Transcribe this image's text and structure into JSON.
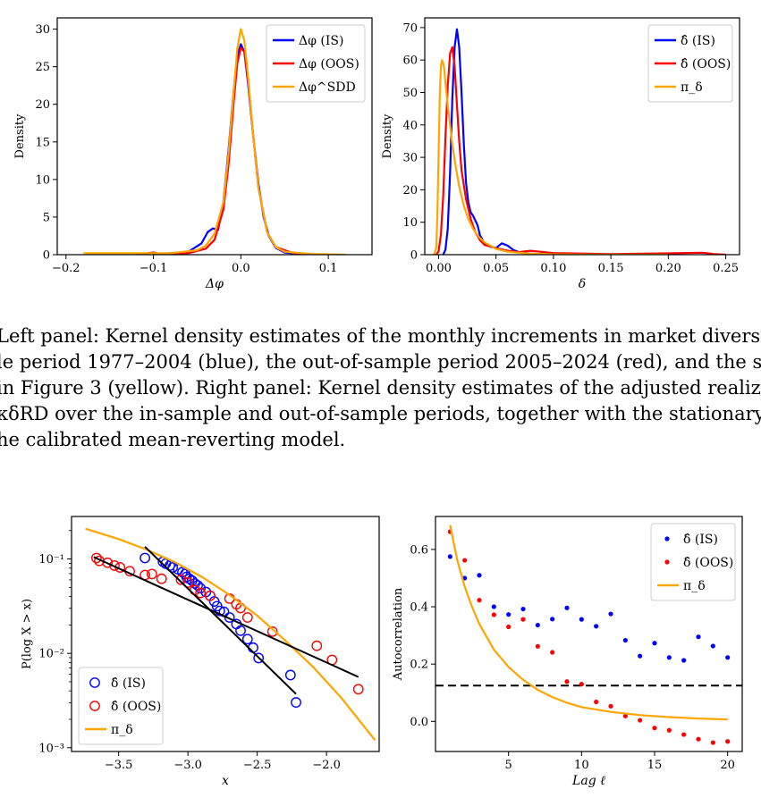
{
  "caption_lines": [
    "Left panel: Kernel density estimates of the monthly increments in market diversit",
    "le period 1977–2004 (blue), the out-of-sample period 2005–2024 (red), and the s",
    "in Figure 3 (yellow). Right panel: Kernel density estimates of the adjusted realize",
    "κδRD over the in-sample and out-of-sample periods, together with the stationary",
    "he calibrated mean-reverting model."
  ],
  "colors": {
    "is": "#0000ff",
    "oos": "#ff0000",
    "model": "#ffa500",
    "fit": "#000000"
  },
  "chart_data": [
    {
      "id": "kde-dphi",
      "type": "line",
      "xlabel": "Δφ",
      "ylabel": "Density",
      "xlim": [
        -0.21,
        0.15
      ],
      "ylim": [
        0,
        31.5
      ],
      "xticks": [
        -0.2,
        -0.1,
        0.0,
        0.1
      ],
      "xtick_labels": [
        "−0.2",
        "−0.1",
        "0.0",
        "0.1"
      ],
      "yticks": [
        0,
        5,
        10,
        15,
        20,
        25,
        30
      ],
      "ytick_labels": [
        "0",
        "5",
        "10",
        "15",
        "20",
        "25",
        "30"
      ],
      "legend_position": "top-right",
      "series": [
        {
          "name": "Δφ (IS)",
          "color": "#0000ff",
          "x": [
            -0.1,
            -0.06,
            -0.045,
            -0.038,
            -0.032,
            -0.026,
            -0.02,
            -0.014,
            -0.008,
            -0.004,
            0.0,
            0.004,
            0.008,
            0.014,
            0.02,
            0.026,
            0.032,
            0.04,
            0.05,
            0.07,
            0.1
          ],
          "y": [
            0,
            0.4,
            1.5,
            3.0,
            3.5,
            3.3,
            7.0,
            14.0,
            22.0,
            26.5,
            28.0,
            27.0,
            23.0,
            16.0,
            9.5,
            5.0,
            2.5,
            0.9,
            0.3,
            0.05,
            0
          ]
        },
        {
          "name": "Δφ (OOS)",
          "color": "#ff0000",
          "x": [
            -0.12,
            -0.1,
            -0.09,
            -0.06,
            -0.04,
            -0.03,
            -0.02,
            -0.014,
            -0.008,
            -0.004,
            0.0,
            0.004,
            0.008,
            0.014,
            0.02,
            0.03,
            0.04,
            0.06,
            0.08
          ],
          "y": [
            0,
            0.3,
            0,
            0.2,
            0.8,
            2.0,
            6.0,
            12.0,
            20.5,
            25.5,
            27.5,
            27.0,
            23.5,
            16.0,
            9.0,
            3.0,
            1.0,
            0.2,
            0
          ]
        },
        {
          "name": "Δφ^SDD",
          "color": "#ffa500",
          "x": [
            -0.18,
            -0.12,
            -0.08,
            -0.05,
            -0.04,
            -0.03,
            -0.02,
            -0.014,
            -0.008,
            -0.004,
            0.0,
            0.004,
            0.008,
            0.014,
            0.02,
            0.03,
            0.04,
            0.05,
            0.08,
            0.12
          ],
          "y": [
            0.2,
            0.2,
            0.2,
            0.6,
            1.2,
            2.8,
            7.0,
            13.5,
            22.0,
            27.5,
            30.0,
            28.5,
            24.0,
            16.0,
            9.0,
            3.0,
            1.0,
            0.4,
            0.1,
            0
          ]
        }
      ]
    },
    {
      "id": "kde-delta",
      "type": "line",
      "xlabel": "δ",
      "ylabel": "Density",
      "xlim": [
        -0.012,
        0.262
      ],
      "ylim": [
        0,
        73
      ],
      "xticks": [
        0.0,
        0.05,
        0.1,
        0.15,
        0.2,
        0.25
      ],
      "xtick_labels": [
        "0.00",
        "0.05",
        "0.10",
        "0.15",
        "0.20",
        "0.25"
      ],
      "yticks": [
        0,
        10,
        20,
        30,
        40,
        50,
        60,
        70
      ],
      "ytick_labels": [
        "0",
        "10",
        "20",
        "30",
        "40",
        "50",
        "60",
        "70"
      ],
      "legend_position": "top-right",
      "series": [
        {
          "name": "δ̂ (IS)",
          "color": "#0000ff",
          "x": [
            0.004,
            0.006,
            0.008,
            0.01,
            0.012,
            0.014,
            0.016,
            0.018,
            0.02,
            0.022,
            0.024,
            0.026,
            0.028,
            0.03,
            0.034,
            0.036,
            0.04,
            0.045,
            0.05,
            0.055,
            0.06,
            0.065,
            0.07,
            0.08,
            0.1
          ],
          "y": [
            0,
            1.5,
            8,
            25,
            48,
            64,
            69.5,
            64,
            50,
            34,
            22,
            16,
            13,
            12,
            9,
            6,
            3.5,
            2.5,
            2,
            3.5,
            2.8,
            1.5,
            0.8,
            0.3,
            0
          ]
        },
        {
          "name": "δ̂ (OOS)",
          "color": "#ff0000",
          "x": [
            -0.002,
            0.0,
            0.002,
            0.004,
            0.006,
            0.008,
            0.01,
            0.012,
            0.014,
            0.016,
            0.018,
            0.02,
            0.024,
            0.028,
            0.032,
            0.036,
            0.04,
            0.05,
            0.06,
            0.07,
            0.08,
            0.1,
            0.15,
            0.2,
            0.23,
            0.24,
            0.25
          ],
          "y": [
            0,
            1,
            6,
            18,
            36,
            52,
            62,
            64,
            58,
            46,
            35,
            26,
            17,
            11,
            7,
            4.5,
            3,
            2,
            1.2,
            0.8,
            1.2,
            0.5,
            0.2,
            0.4,
            0.6,
            0.2,
            0
          ]
        },
        {
          "name": "π_δ",
          "color": "#ffa500",
          "x": [
            -0.004,
            -0.002,
            -0.001,
            0.0,
            0.001,
            0.002,
            0.003,
            0.004,
            0.005,
            0.006,
            0.008,
            0.01,
            0.012,
            0.015,
            0.018,
            0.022,
            0.026,
            0.03,
            0.035,
            0.04,
            0.05,
            0.06,
            0.08,
            0.1,
            0.15,
            0.2
          ],
          "y": [
            0,
            2,
            12,
            30,
            48,
            58,
            60,
            59,
            57,
            53,
            46,
            40,
            34,
            27,
            21,
            15,
            11,
            8,
            5.5,
            3.8,
            1.8,
            0.9,
            0.3,
            0.1,
            0,
            0
          ]
        }
      ]
    },
    {
      "id": "tail-plot",
      "type": "scatter",
      "xlabel": "x",
      "ylabel": "P(log X > x)",
      "yscale": "log",
      "xlim": [
        -3.84,
        -1.62
      ],
      "ylim_log10": [
        -3.04,
        -0.55
      ],
      "xticks": [
        -3.5,
        -3.0,
        -2.5,
        -2.0
      ],
      "xtick_labels": [
        "−3.5",
        "−3.0",
        "−2.5",
        "−2.0"
      ],
      "yticks_log10": [
        -1,
        -2,
        -3
      ],
      "ytick_labels": [
        "10⁻¹",
        "10⁻²",
        "10⁻³"
      ],
      "legend_position": "bottom-left",
      "series": [
        {
          "name": "δ̂ (IS)",
          "color": "#0000ff",
          "marker": "open-circle",
          "x": [
            -3.31,
            -3.18,
            -3.16,
            -3.13,
            -3.11,
            -3.07,
            -3.04,
            -3.02,
            -3.01,
            -2.99,
            -2.97,
            -2.95,
            -2.93,
            -2.91,
            -2.87,
            -2.84,
            -2.81,
            -2.79,
            -2.77,
            -2.74,
            -2.7,
            -2.65,
            -2.62,
            -2.57,
            -2.53,
            -2.49,
            -2.26,
            -2.22
          ],
          "y_log10": [
            -0.99,
            -1.03,
            -1.05,
            -1.07,
            -1.09,
            -1.11,
            -1.14,
            -1.16,
            -1.19,
            -1.21,
            -1.23,
            -1.26,
            -1.28,
            -1.31,
            -1.35,
            -1.39,
            -1.45,
            -1.5,
            -1.55,
            -1.56,
            -1.62,
            -1.69,
            -1.76,
            -1.85,
            -1.94,
            -2.05,
            -2.23,
            -2.52
          ]
        },
        {
          "name": "δ̂ (OOS)",
          "color": "#ff0000",
          "marker": "open-circle",
          "x": [
            -3.66,
            -3.64,
            -3.58,
            -3.53,
            -3.49,
            -3.42,
            -3.31,
            -3.26,
            -3.19,
            -3.05,
            -3.0,
            -2.95,
            -2.91,
            -2.84,
            -2.7,
            -2.65,
            -2.62,
            -2.57,
            -2.39,
            -2.07,
            -1.96,
            -1.77
          ],
          "y_log10": [
            -0.99,
            -1.02,
            -1.04,
            -1.07,
            -1.09,
            -1.13,
            -1.17,
            -1.16,
            -1.21,
            -1.22,
            -1.25,
            -1.33,
            -1.36,
            -1.39,
            -1.42,
            -1.48,
            -1.52,
            -1.62,
            -1.77,
            -1.92,
            -2.07,
            -2.38
          ]
        },
        {
          "name": "π_δ",
          "color": "#ffa500",
          "type": "line",
          "x": [
            -3.74,
            -3.5,
            -3.3,
            -3.1,
            -2.9,
            -2.7,
            -2.5,
            -2.3,
            -2.1,
            -1.9,
            -1.65
          ],
          "y_log10": [
            -0.68,
            -0.79,
            -0.9,
            -1.03,
            -1.19,
            -1.38,
            -1.6,
            -1.86,
            -2.14,
            -2.46,
            -2.92
          ]
        },
        {
          "type": "fit-line",
          "color": "#000000",
          "x": [
            -3.31,
            -2.22
          ],
          "y_log10": [
            -0.87,
            -2.43
          ]
        },
        {
          "type": "fit-line",
          "color": "#000000",
          "x": [
            -3.68,
            -1.77
          ],
          "y_log10": [
            -0.98,
            -2.25
          ]
        }
      ]
    },
    {
      "id": "acf-plot",
      "type": "scatter",
      "xlabel": "Lag ℓ",
      "ylabel": "Autocorrelation",
      "xlim": [
        0.0,
        21.0
      ],
      "ylim": [
        -0.105,
        0.715
      ],
      "xticks": [
        5,
        10,
        15,
        20
      ],
      "xtick_labels": [
        "5",
        "10",
        "15",
        "20"
      ],
      "yticks": [
        0.0,
        0.2,
        0.4,
        0.6
      ],
      "ytick_labels": [
        "0.0",
        "0.2",
        "0.4",
        "0.6"
      ],
      "hline": 0.125,
      "legend_position": "top-right",
      "series": [
        {
          "name": "δ̂ (IS)",
          "color": "#0000ff",
          "marker": "dot",
          "x": [
            1,
            2,
            3,
            4,
            5,
            6,
            7,
            8,
            9,
            10,
            11,
            12,
            13,
            14,
            15,
            16,
            17,
            18,
            19,
            20
          ],
          "y": [
            0.575,
            0.5,
            0.51,
            0.4,
            0.373,
            0.392,
            0.336,
            0.357,
            0.396,
            0.356,
            0.332,
            0.375,
            0.283,
            0.228,
            0.273,
            0.223,
            0.213,
            0.295,
            0.263,
            0.223
          ]
        },
        {
          "name": "δ̂ (OOS)",
          "color": "#ff0000",
          "marker": "dot",
          "x": [
            1,
            2,
            3,
            4,
            5,
            6,
            7,
            8,
            9,
            10,
            11,
            12,
            13,
            14,
            15,
            16,
            17,
            18,
            19,
            20
          ],
          "y": [
            0.662,
            0.562,
            0.423,
            0.372,
            0.33,
            0.356,
            0.262,
            0.241,
            0.139,
            0.13,
            0.068,
            0.053,
            0.019,
            0.004,
            -0.023,
            -0.031,
            -0.046,
            -0.062,
            -0.074,
            -0.07
          ]
        },
        {
          "name": "π_δ",
          "color": "#ffa500",
          "type": "line",
          "x": [
            1,
            1.5,
            2,
            2.5,
            3,
            4,
            5,
            6,
            7,
            8,
            9,
            10,
            12,
            14,
            16,
            18,
            20
          ],
          "y": [
            0.685,
            0.56,
            0.47,
            0.4,
            0.34,
            0.25,
            0.19,
            0.145,
            0.11,
            0.085,
            0.065,
            0.05,
            0.033,
            0.022,
            0.015,
            0.01,
            0.007
          ]
        }
      ]
    }
  ]
}
